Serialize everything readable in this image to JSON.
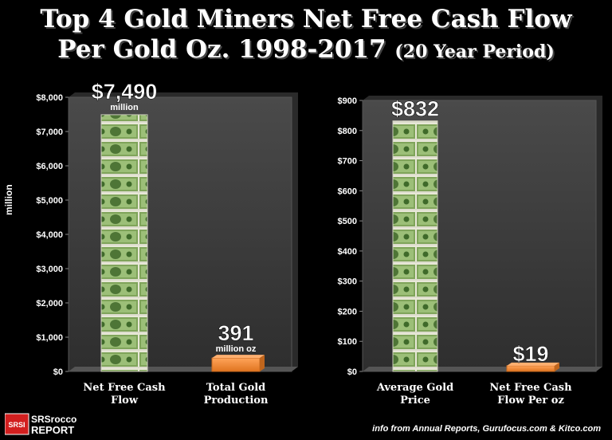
{
  "title_line1": "Top 4 Gold Miners Net Free Cash Flow",
  "title_line2": "Per Gold Oz. 1998-2017",
  "title_line2_small": "(20 Year Period)",
  "left_ylabel": "million",
  "logo": {
    "badge": "SRSI",
    "line1": "SRSrocco",
    "line2": "REPORT"
  },
  "credit": "info from Annual Reports, Gurufocus.com & Kitco.com",
  "chart_data": [
    {
      "type": "bar",
      "categories": [
        "Net Free Cash Flow",
        "Total Gold Production"
      ],
      "values": [
        7490,
        391
      ],
      "value_labels": [
        "$7,490",
        "391"
      ],
      "value_sublabels": [
        "million",
        "million oz"
      ],
      "ylabel": "million",
      "ylim": [
        0,
        8000
      ],
      "yticks": [
        0,
        1000,
        2000,
        3000,
        4000,
        5000,
        6000,
        7000,
        8000
      ],
      "ytick_labels": [
        "$0",
        "$1,000",
        "$2,000",
        "$3,000",
        "$4,000",
        "$5,000",
        "$6,000",
        "$7,000",
        "$8,000"
      ],
      "grid": false,
      "bar_styles": [
        "money",
        "orange"
      ]
    },
    {
      "type": "bar",
      "categories": [
        "Average Gold Price",
        "Net Free Cash Flow Per oz"
      ],
      "values": [
        832,
        19
      ],
      "value_labels": [
        "$832",
        "$19"
      ],
      "value_sublabels": [
        "",
        ""
      ],
      "ylabel": "",
      "ylim": [
        0,
        900
      ],
      "yticks": [
        0,
        100,
        200,
        300,
        400,
        500,
        600,
        700,
        800,
        900
      ],
      "ytick_labels": [
        "$0",
        "$100",
        "$200",
        "$300",
        "$400",
        "$500",
        "$600",
        "$700",
        "$800",
        "$900"
      ],
      "grid": false,
      "bar_styles": [
        "money",
        "orange"
      ]
    }
  ],
  "colors": {
    "background": "#000000",
    "panel": "#3a3a3a",
    "orange": "#f08a3c",
    "money": "#6f9a4a"
  }
}
